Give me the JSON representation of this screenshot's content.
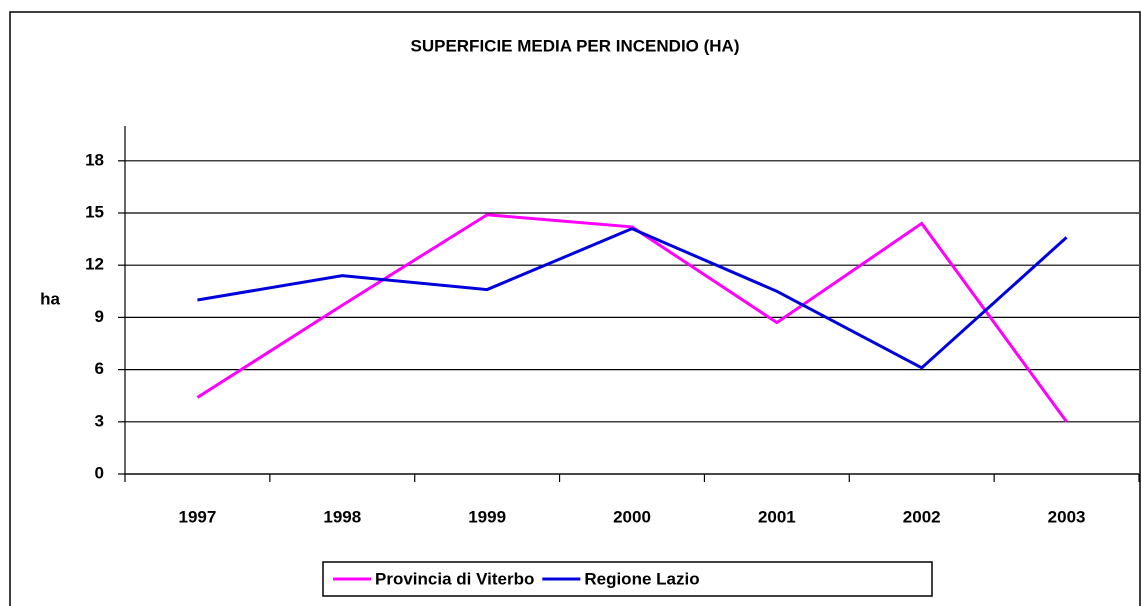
{
  "chart_data": {
    "type": "line",
    "title": "SUPERFICIE MEDIA PER INCENDIO (HA)",
    "y_label": "ha",
    "categories": [
      "1997",
      "1998",
      "1999",
      "2000",
      "2001",
      "2002",
      "2003"
    ],
    "series": [
      {
        "name": "Provincia di Viterbo",
        "color": "#ff00ff",
        "values": [
          4.4,
          9.7,
          14.9,
          14.2,
          8.7,
          14.4,
          3.0
        ]
      },
      {
        "name": "Regione Lazio",
        "color": "#0000dd",
        "values": [
          10.0,
          11.4,
          10.6,
          14.1,
          10.5,
          6.1,
          13.6
        ]
      }
    ],
    "ylim": [
      0,
      20
    ],
    "yticks": [
      0,
      3,
      6,
      9,
      12,
      15,
      18
    ],
    "grid": true,
    "legend": "bottom"
  }
}
